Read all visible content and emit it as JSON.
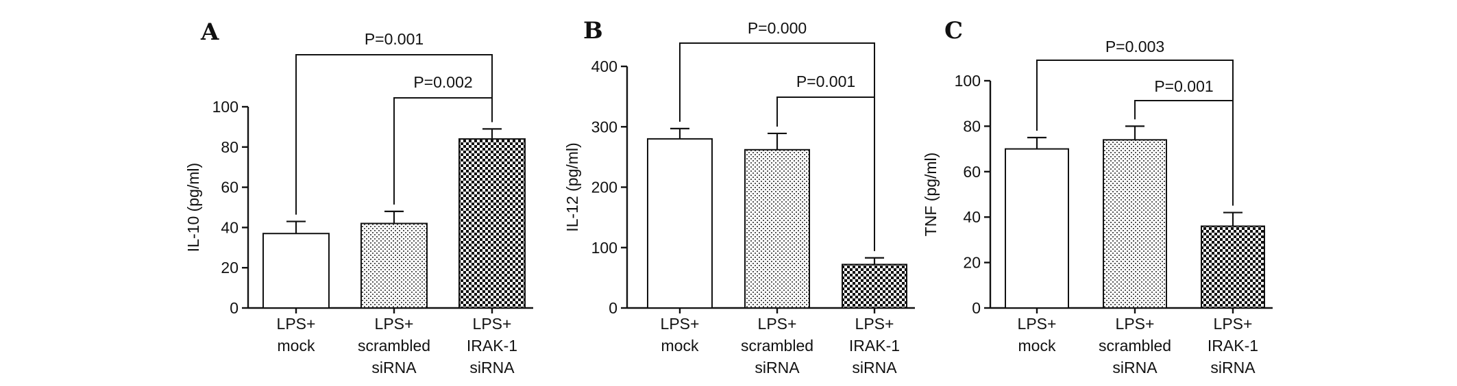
{
  "chart_data": [
    {
      "panel": "A",
      "type": "bar",
      "ylabel": "IL-10 (pg/ml)",
      "ylim": [
        0,
        100
      ],
      "yticks": [
        0,
        20,
        40,
        60,
        80,
        100
      ],
      "categories": [
        [
          "LPS+",
          "mock"
        ],
        [
          "LPS+",
          "scrambled",
          "siRNA"
        ],
        [
          "LPS+",
          "IRAK-1",
          "siRNA"
        ]
      ],
      "values": [
        37,
        42,
        84
      ],
      "errors": [
        6,
        6,
        5
      ],
      "fills": [
        "white",
        "dots",
        "checker"
      ],
      "comparisons": [
        {
          "label": "P=0.001",
          "from": 0,
          "to": 2
        },
        {
          "label": "P=0.002",
          "from": 1,
          "to": 2
        }
      ]
    },
    {
      "panel": "B",
      "type": "bar",
      "ylabel": "IL-12 (pg/ml)",
      "ylim": [
        0,
        400
      ],
      "yticks": [
        0,
        100,
        200,
        300,
        400
      ],
      "categories": [
        [
          "LPS+",
          "mock"
        ],
        [
          "LPS+",
          "scrambled",
          "siRNA"
        ],
        [
          "LPS+",
          "IRAK-1",
          "siRNA"
        ]
      ],
      "values": [
        280,
        262,
        72
      ],
      "errors": [
        17,
        27,
        11
      ],
      "fills": [
        "white",
        "dots",
        "checker"
      ],
      "comparisons": [
        {
          "label": "P=0.000",
          "from": 0,
          "to": 2
        },
        {
          "label": "P=0.001",
          "from": 1,
          "to": 2
        }
      ]
    },
    {
      "panel": "C",
      "type": "bar",
      "ylabel": "TNF (pg/ml)",
      "ylim": [
        0,
        100
      ],
      "yticks": [
        0,
        20,
        40,
        60,
        80,
        100
      ],
      "categories": [
        [
          "LPS+",
          "mock"
        ],
        [
          "LPS+",
          "scrambled",
          "siRNA"
        ],
        [
          "LPS+",
          "IRAK-1",
          "siRNA"
        ]
      ],
      "values": [
        70,
        74,
        36
      ],
      "errors": [
        5,
        6,
        6
      ],
      "fills": [
        "white",
        "dots",
        "checker"
      ],
      "comparisons": [
        {
          "label": "P=0.003",
          "from": 0,
          "to": 2
        },
        {
          "label": "P=0.001",
          "from": 1,
          "to": 2
        }
      ]
    }
  ]
}
